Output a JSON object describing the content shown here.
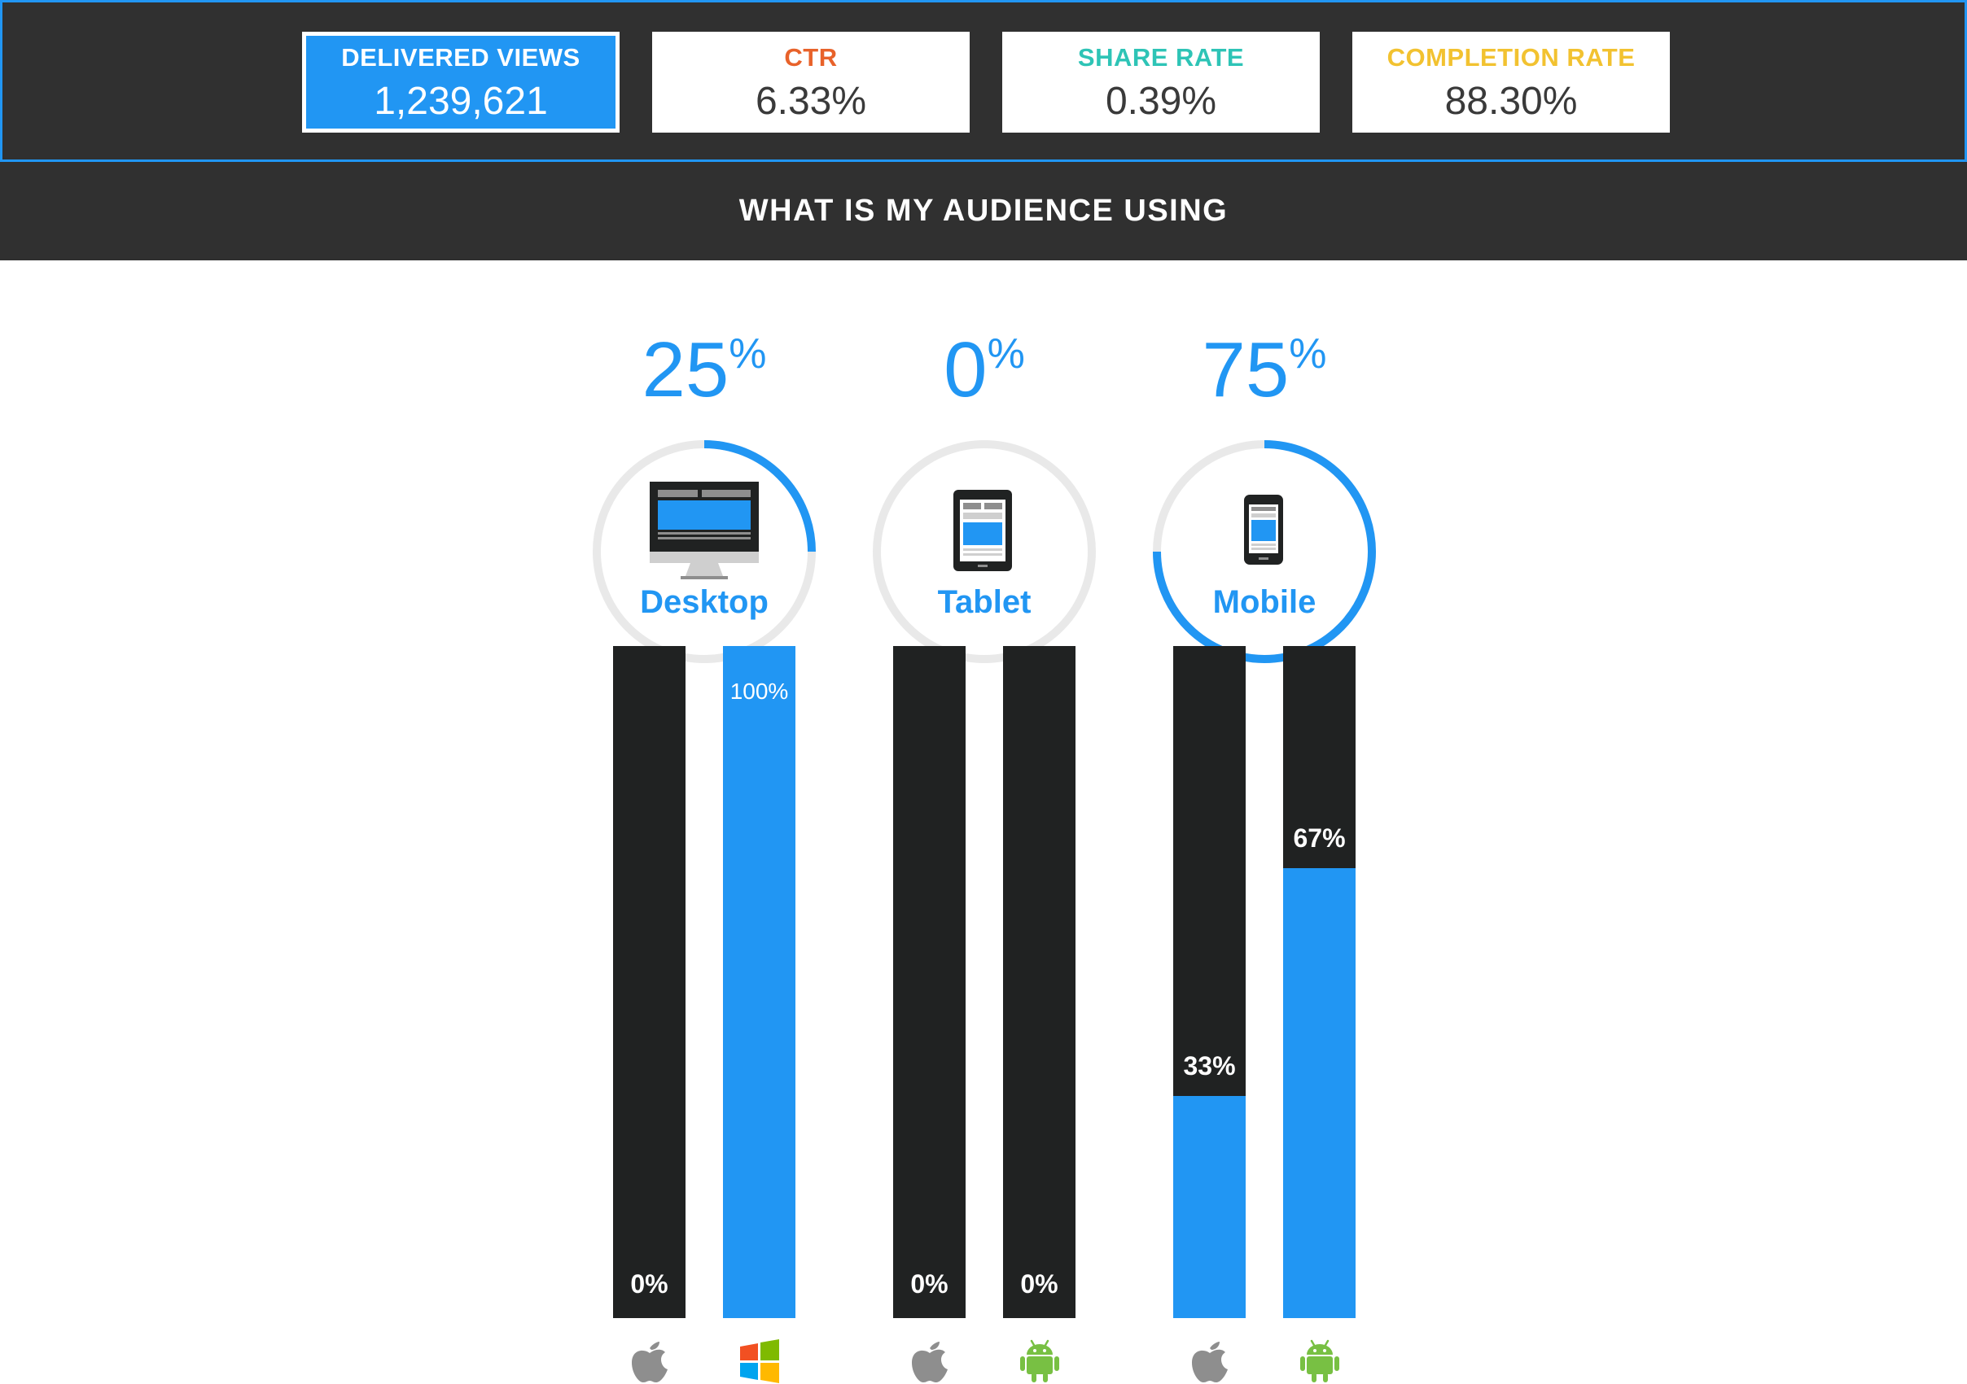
{
  "metrics": [
    {
      "label": "DELIVERED VIEWS",
      "value": "1,239,621",
      "color": "#2196f3",
      "active": true
    },
    {
      "label": "CTR",
      "value": "6.33%",
      "color": "#e8622a",
      "active": false
    },
    {
      "label": "SHARE RATE",
      "value": "0.39%",
      "color": "#2ec4b6",
      "active": false
    },
    {
      "label": "COMPLETION RATE",
      "value": "88.30%",
      "color": "#f2c230",
      "active": false
    }
  ],
  "section_title": "WHAT IS MY AUDIENCE USING",
  "devices": [
    {
      "name": "Desktop",
      "percent": "25",
      "percent_sign": "%",
      "share": 0.25,
      "icon": "desktop-icon",
      "bars": [
        {
          "os": "apple",
          "label": "0%",
          "fraction": 0
        },
        {
          "os": "windows",
          "label": "100%",
          "fraction": 1.0
        }
      ]
    },
    {
      "name": "Tablet",
      "percent": "0",
      "percent_sign": "%",
      "share": 0,
      "icon": "tablet-icon",
      "bars": [
        {
          "os": "apple",
          "label": "0%",
          "fraction": 0
        },
        {
          "os": "android",
          "label": "0%",
          "fraction": 0
        }
      ]
    },
    {
      "name": "Mobile",
      "percent": "75",
      "percent_sign": "%",
      "share": 0.75,
      "icon": "mobile-icon",
      "bars": [
        {
          "os": "apple",
          "label": "33%",
          "fraction": 0.33
        },
        {
          "os": "android",
          "label": "67%",
          "fraction": 0.67
        }
      ]
    }
  ],
  "colors": {
    "accent": "#2196f3",
    "dark": "#303030",
    "bar_dark": "#202222",
    "ring_track": "#e9e9e9",
    "apple": "#8e8e8e",
    "android": "#78c043"
  }
}
